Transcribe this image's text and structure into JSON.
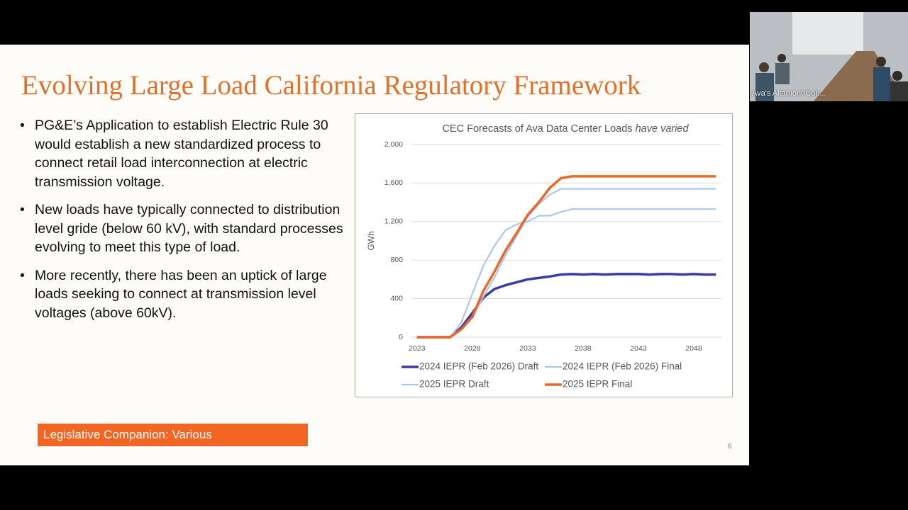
{
  "slide": {
    "title": "Evolving Large Load California Regulatory Framework",
    "bullets": [
      "PG&E’s Application to establish Electric Rule 30 would establish a new standardized process to connect retail load interconnection at electric transmission voltage.",
      "New loads have typically connected to distribution level gride (below 60 kV), with standard processes evolving to meet this type of load.",
      "More recently, there has been an uptick of large loads seeking to connect at transmission level voltages (above 60kV)."
    ],
    "tag": "Legislative Companion: Various",
    "page_number": "6"
  },
  "video": {
    "label": "Ava's Altamont Con..."
  },
  "chart_data": {
    "type": "line",
    "title": "CEC Forecasts of Ava Data Center Loads",
    "title_emphasis": "have varied",
    "y_label": "GWh",
    "x": [
      2023,
      2024,
      2025,
      2026,
      2027,
      2028,
      2029,
      2030,
      2031,
      2032,
      2033,
      2034,
      2035,
      2036,
      2037,
      2038,
      2039,
      2040,
      2041,
      2042,
      2043,
      2044,
      2045,
      2046,
      2047,
      2048,
      2049,
      2050
    ],
    "series": [
      {
        "name": "2024 IEPR (Feb 2026) Draft",
        "color": "#3b3aa6",
        "width": 3.5,
        "values": [
          0,
          0,
          0,
          0,
          100,
          250,
          410,
          500,
          540,
          570,
          600,
          615,
          630,
          650,
          655,
          650,
          655,
          650,
          655,
          655,
          655,
          650,
          655,
          655,
          650,
          655,
          650,
          650
        ]
      },
      {
        "name": "2024 IEPR (Feb 2026) Final",
        "color": "#a8c3ea",
        "width": 2,
        "values": [
          0,
          0,
          0,
          0,
          150,
          450,
          740,
          950,
          1110,
          1170,
          1200,
          1260,
          1260,
          1300,
          1330,
          1330,
          1330,
          1330,
          1330,
          1330,
          1330,
          1330,
          1330,
          1330,
          1330,
          1330,
          1330,
          1330
        ]
      },
      {
        "name": "2025 IEPR Draft",
        "color": "#a8c3ea",
        "width": 2,
        "values": [
          0,
          0,
          0,
          0,
          80,
          200,
          420,
          620,
          850,
          1050,
          1250,
          1380,
          1480,
          1540,
          1540,
          1540,
          1540,
          1540,
          1540,
          1540,
          1540,
          1540,
          1540,
          1540,
          1540,
          1540,
          1540,
          1540
        ]
      },
      {
        "name": "2025 IEPR Final",
        "color": "#e8692a",
        "width": 3.5,
        "values": [
          0,
          0,
          0,
          0,
          80,
          210,
          480,
          680,
          900,
          1080,
          1270,
          1400,
          1550,
          1650,
          1670,
          1670,
          1670,
          1670,
          1670,
          1670,
          1670,
          1670,
          1670,
          1670,
          1670,
          1670,
          1670,
          1670
        ]
      }
    ],
    "xlim": [
      2022.5,
      2050.5
    ],
    "xticks": [
      2023,
      2028,
      2033,
      2038,
      2043,
      2048
    ],
    "ylim": [
      0,
      2000
    ],
    "yticks": [
      0,
      400,
      800,
      {
        "value": 1200,
        "label": "1,200"
      },
      {
        "value": 1600,
        "label": "1,600"
      },
      {
        "value": 2000,
        "label": "2,000"
      }
    ],
    "grid": true
  }
}
